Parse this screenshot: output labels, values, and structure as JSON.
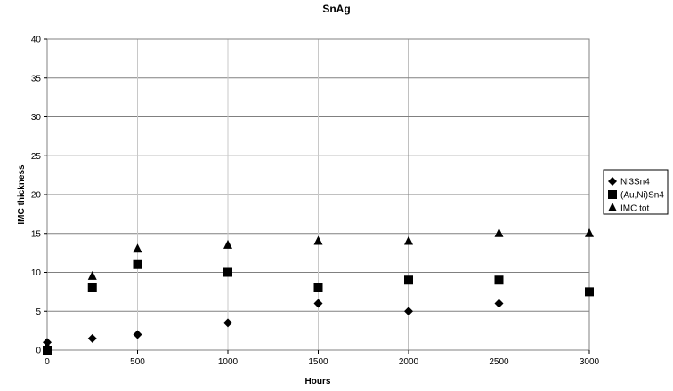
{
  "chart_data": {
    "type": "scatter",
    "title": "SnAg",
    "xlabel": "Hours",
    "ylabel": "IMC thickness",
    "xlim": [
      0,
      3000
    ],
    "ylim": [
      0,
      40
    ],
    "xticks": [
      0,
      500,
      1000,
      1500,
      2000,
      2500,
      3000
    ],
    "yticks": [
      0,
      5,
      10,
      15,
      20,
      25,
      30,
      35,
      40
    ],
    "grid": true,
    "legend_position": "right",
    "series": [
      {
        "name": "Ni3Sn4",
        "marker": "diamond",
        "color": "#000000",
        "points": [
          [
            0,
            1
          ],
          [
            250,
            1.5
          ],
          [
            500,
            2
          ],
          [
            1000,
            3.5
          ],
          [
            1500,
            6
          ],
          [
            2000,
            5
          ],
          [
            2500,
            6
          ]
        ]
      },
      {
        "name": "(Au,Ni)Sn4",
        "marker": "square",
        "color": "#000000",
        "points": [
          [
            0,
            0
          ],
          [
            250,
            8
          ],
          [
            500,
            11
          ],
          [
            1000,
            10
          ],
          [
            1500,
            8
          ],
          [
            2000,
            9
          ],
          [
            2500,
            9
          ],
          [
            3000,
            7.5
          ]
        ]
      },
      {
        "name": "IMC tot",
        "marker": "triangle",
        "color": "#000000",
        "points": [
          [
            0,
            0.5
          ],
          [
            250,
            9.5
          ],
          [
            500,
            13
          ],
          [
            1000,
            13.5
          ],
          [
            1500,
            14
          ],
          [
            2000,
            14
          ],
          [
            2500,
            15
          ],
          [
            3000,
            15
          ]
        ]
      }
    ]
  }
}
